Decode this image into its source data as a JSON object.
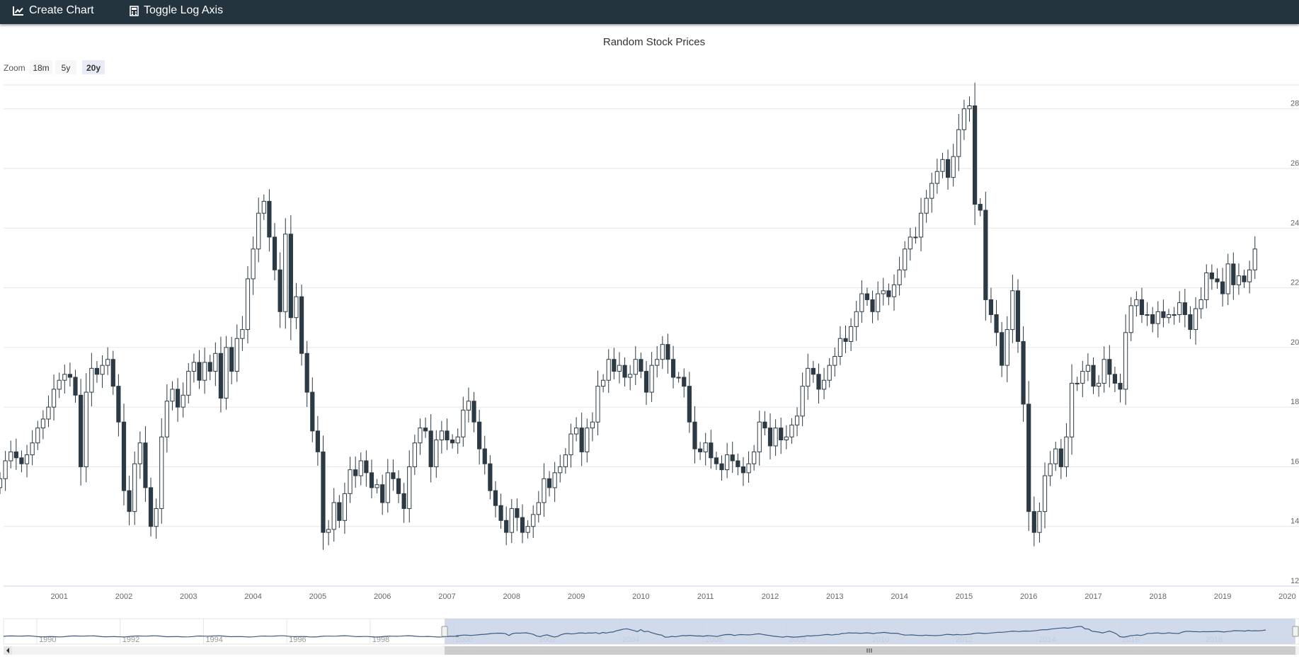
{
  "toolbar": {
    "create_chart": "Create Chart",
    "toggle_log_axis": "Toggle Log Axis"
  },
  "zoom": {
    "label": "Zoom",
    "buttons": [
      "18m",
      "5y",
      "20y"
    ],
    "active": "20y"
  },
  "colors": {
    "toolbar_bg": "#24343f",
    "down_candle": "#2b3a44",
    "up_candle": "#ffffff",
    "navigator_mask": "#c9d4e6",
    "navigator_line": "#3d5a80"
  },
  "chart_data": {
    "type": "candlestick",
    "title": "Random Stock Prices",
    "xlabel": "",
    "ylabel": "",
    "x_ticks": [
      "2001",
      "2002",
      "2003",
      "2004",
      "2005",
      "2006",
      "2007",
      "2008",
      "2009",
      "2010",
      "2011",
      "2012",
      "2013",
      "2014",
      "2015",
      "2016",
      "2017",
      "2018",
      "2019",
      "2020"
    ],
    "y_ticks": [
      12,
      14,
      16,
      18,
      20,
      22,
      24,
      26,
      28
    ],
    "ylim": [
      12,
      28.8
    ],
    "xlim": [
      "2000-02",
      "2020-02"
    ],
    "grid": true,
    "y_axis_side": "right",
    "series": [
      {
        "period": "monthly",
        "close": [
          15.6,
          16.2,
          16.5,
          16.3,
          16.1,
          16.4,
          16.8,
          17.3,
          17.6,
          18.0,
          18.6,
          18.9,
          19.1,
          19.0,
          18.4,
          16.0,
          18.5,
          19.3,
          19.1,
          19.4,
          19.6,
          18.7,
          17.5,
          15.2,
          14.5,
          16.1,
          16.8,
          15.3,
          14.0,
          14.6,
          17.0,
          18.2,
          18.6,
          18.0,
          18.4,
          19.2,
          19.5,
          18.9,
          19.5,
          19.2,
          19.8,
          18.3,
          20.0,
          19.2,
          20.3,
          20.6,
          22.3,
          23.3,
          24.5,
          24.9,
          23.7,
          22.6,
          21.2,
          23.8,
          21.0,
          21.7,
          19.8,
          18.5,
          17.2,
          16.5,
          13.8,
          13.9,
          14.8,
          14.2,
          15.1,
          15.9,
          15.7,
          16.2,
          15.8,
          15.3,
          15.4,
          14.8,
          15.8,
          15.6,
          15.1,
          14.6,
          16.0,
          16.8,
          17.3,
          17.2,
          16.0,
          16.9,
          17.2,
          16.9,
          16.8,
          17.0,
          17.9,
          18.2,
          17.5,
          16.6,
          16.1,
          15.2,
          14.7,
          14.2,
          13.8,
          14.6,
          14.3,
          13.8,
          14.0,
          14.4,
          14.8,
          15.6,
          15.3,
          15.8,
          16.0,
          16.4,
          17.1,
          17.3,
          16.5,
          17.3,
          17.5,
          18.7,
          18.9,
          19.6,
          19.2,
          19.4,
          19.0,
          19.1,
          19.6,
          19.2,
          18.5,
          19.4,
          19.6,
          20.1,
          19.6,
          19.0,
          19.0,
          18.7,
          17.5,
          16.6,
          16.5,
          16.8,
          16.3,
          16.1,
          15.9,
          16.4,
          16.2,
          16.0,
          15.8,
          16.1,
          16.5,
          17.5,
          17.3,
          16.7,
          17.3,
          16.9,
          17.0,
          17.4,
          17.7,
          18.7,
          19.3,
          19.1,
          18.6,
          18.9,
          19.4,
          19.7,
          20.3,
          20.2,
          20.7,
          21.2,
          21.8,
          21.6,
          21.2,
          21.8,
          21.9,
          21.7,
          22.1,
          22.6,
          23.3,
          23.7,
          23.7,
          24.5,
          25.0,
          25.5,
          25.9,
          26.3,
          25.7,
          26.4,
          27.3,
          28.0,
          28.1,
          24.8,
          24.6,
          21.6,
          21.1,
          20.5,
          19.4,
          20.6,
          21.9,
          20.2,
          18.1,
          14.5,
          13.8,
          14.5,
          15.7,
          16.1,
          16.6,
          16.0,
          17.0,
          18.8,
          18.8,
          19.2,
          19.4,
          18.7,
          18.8,
          19.6,
          19.1,
          18.8,
          18.6,
          20.5,
          21.4,
          21.6,
          21.1,
          21.1,
          20.8,
          21.2,
          21.0,
          21.1,
          21.1,
          21.5,
          21.1,
          20.6,
          21.3,
          21.6,
          22.5,
          22.3,
          22.2,
          21.8,
          22.8,
          22.1,
          22.4,
          22.2,
          22.6,
          23.3
        ]
      }
    ],
    "navigator": {
      "x_ticks": [
        "1990",
        "1992",
        "1994",
        "1996",
        "1998",
        "2000",
        "2002",
        "2004",
        "2006",
        "2008",
        "2010",
        "2012",
        "2014",
        "2016",
        "2018"
      ],
      "selected_range": [
        "2000",
        "2020"
      ]
    }
  }
}
